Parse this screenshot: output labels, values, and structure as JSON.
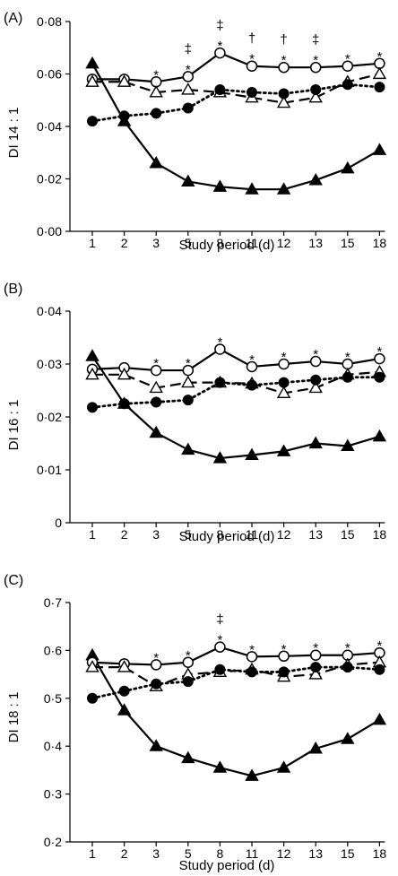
{
  "chart_data": [
    {
      "type": "line",
      "panel_label": "(A)",
      "ylabel": "DI 14 : 1",
      "xlabel": "Study period (d)",
      "categories": [
        "1",
        "2",
        "3",
        "5",
        "8",
        "11",
        "12",
        "13",
        "15",
        "18"
      ],
      "ylim": [
        0,
        0.08
      ],
      "yticks": [
        0,
        0.02,
        0.04,
        0.06,
        0.08
      ],
      "ytick_labels": [
        "0·00",
        "0·02",
        "0·04",
        "0·06",
        "0·08"
      ],
      "series": [
        {
          "style": "solid",
          "marker": "filled-triangle",
          "values": [
            0.064,
            0.042,
            0.026,
            0.019,
            0.017,
            0.016,
            0.016,
            0.0195,
            0.024,
            0.031
          ]
        },
        {
          "style": "solid",
          "marker": "open-circle",
          "values": [
            0.058,
            0.058,
            0.057,
            0.059,
            0.068,
            0.063,
            0.0625,
            0.0625,
            0.063,
            0.064
          ]
        },
        {
          "style": "dashed",
          "marker": "open-triangle",
          "values": [
            0.057,
            0.057,
            0.053,
            0.054,
            0.053,
            0.051,
            0.049,
            0.051,
            0.057,
            0.06
          ]
        },
        {
          "style": "dotted",
          "marker": "filled-circle",
          "values": [
            0.042,
            0.044,
            0.045,
            0.047,
            0.054,
            0.053,
            0.0525,
            0.054,
            0.056,
            0.055
          ]
        }
      ],
      "annotations": [
        {
          "x": "3",
          "marks": [
            "*"
          ]
        },
        {
          "x": "5",
          "marks": [
            "*",
            "‡"
          ]
        },
        {
          "x": "8",
          "marks": [
            "*",
            "‡"
          ]
        },
        {
          "x": "11",
          "marks": [
            "*",
            "†"
          ]
        },
        {
          "x": "12",
          "marks": [
            "*",
            "†"
          ]
        },
        {
          "x": "13",
          "marks": [
            "*",
            "‡"
          ]
        },
        {
          "x": "15",
          "marks": [
            "*"
          ]
        },
        {
          "x": "18",
          "marks": [
            "*"
          ]
        }
      ]
    },
    {
      "type": "line",
      "panel_label": "(B)",
      "ylabel": "DI 16 : 1",
      "xlabel": "Study period (d)",
      "categories": [
        "1",
        "2",
        "3",
        "5",
        "8",
        "11",
        "12",
        "13",
        "15",
        "18"
      ],
      "ylim": [
        0,
        0.04
      ],
      "yticks": [
        0,
        0.01,
        0.02,
        0.03,
        0.04
      ],
      "ytick_labels": [
        "0",
        "0·01",
        "0·02",
        "0·03",
        "0·04"
      ],
      "series": [
        {
          "style": "solid",
          "marker": "filled-triangle",
          "values": [
            0.0315,
            0.0225,
            0.017,
            0.0138,
            0.0122,
            0.0128,
            0.0135,
            0.015,
            0.0145,
            0.0163
          ]
        },
        {
          "style": "solid",
          "marker": "open-circle",
          "values": [
            0.029,
            0.0293,
            0.0288,
            0.0288,
            0.0328,
            0.0295,
            0.03,
            0.0305,
            0.03,
            0.031
          ]
        },
        {
          "style": "dashed",
          "marker": "open-triangle",
          "values": [
            0.028,
            0.028,
            0.0255,
            0.0265,
            0.0265,
            0.0263,
            0.0245,
            0.0255,
            0.028,
            0.0285
          ]
        },
        {
          "style": "dotted",
          "marker": "filled-circle",
          "values": [
            0.0218,
            0.0225,
            0.0228,
            0.0232,
            0.0265,
            0.026,
            0.0265,
            0.027,
            0.0275,
            0.0275
          ]
        }
      ],
      "annotations": [
        {
          "x": "3",
          "marks": [
            "*"
          ]
        },
        {
          "x": "5",
          "marks": [
            "*"
          ]
        },
        {
          "x": "8",
          "marks": [
            "*"
          ]
        },
        {
          "x": "11",
          "marks": [
            "*"
          ]
        },
        {
          "x": "12",
          "marks": [
            "*"
          ]
        },
        {
          "x": "13",
          "marks": [
            "*"
          ]
        },
        {
          "x": "15",
          "marks": [
            "*"
          ]
        },
        {
          "x": "18",
          "marks": [
            "*"
          ]
        }
      ]
    },
    {
      "type": "line",
      "panel_label": "(C)",
      "ylabel": "DI 18 : 1",
      "xlabel": "Study period (d)",
      "categories": [
        "1",
        "2",
        "3",
        "5",
        "8",
        "11",
        "12",
        "13",
        "15",
        "18"
      ],
      "ylim": [
        0.2,
        0.7
      ],
      "yticks": [
        0.2,
        0.3,
        0.4,
        0.5,
        0.6,
        0.7
      ],
      "ytick_labels": [
        "0·2",
        "0·3",
        "0·4",
        "0·5",
        "0·6",
        "0·7"
      ],
      "series": [
        {
          "style": "solid",
          "marker": "filled-triangle",
          "values": [
            0.59,
            0.475,
            0.4,
            0.375,
            0.355,
            0.338,
            0.355,
            0.395,
            0.415,
            0.455
          ]
        },
        {
          "style": "solid",
          "marker": "open-circle",
          "values": [
            0.575,
            0.572,
            0.57,
            0.575,
            0.607,
            0.587,
            0.588,
            0.59,
            0.59,
            0.595
          ]
        },
        {
          "style": "dashed",
          "marker": "open-triangle",
          "values": [
            0.565,
            0.565,
            0.525,
            0.55,
            0.555,
            0.56,
            0.545,
            0.55,
            0.57,
            0.575
          ]
        },
        {
          "style": "dotted",
          "marker": "filled-circle",
          "values": [
            0.5,
            0.515,
            0.53,
            0.535,
            0.56,
            0.555,
            0.555,
            0.565,
            0.565,
            0.56
          ]
        }
      ],
      "annotations": [
        {
          "x": "3",
          "marks": [
            "*"
          ]
        },
        {
          "x": "5",
          "marks": [
            "*"
          ]
        },
        {
          "x": "8",
          "marks": [
            "*",
            "‡"
          ]
        },
        {
          "x": "11",
          "marks": [
            "*"
          ]
        },
        {
          "x": "12",
          "marks": [
            "*"
          ]
        },
        {
          "x": "13",
          "marks": [
            "*"
          ]
        },
        {
          "x": "15",
          "marks": [
            "*"
          ]
        },
        {
          "x": "18",
          "marks": [
            "*"
          ]
        }
      ]
    }
  ]
}
